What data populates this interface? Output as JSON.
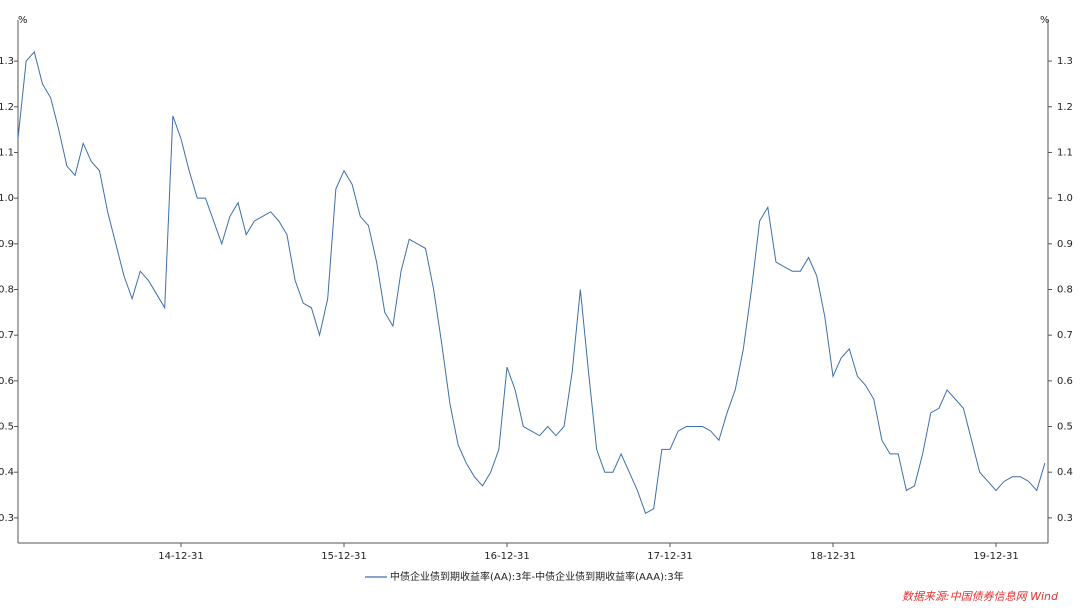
{
  "chart_data": {
    "type": "line",
    "y_unit": "%",
    "categories": [
      null,
      null,
      null,
      null,
      null,
      null,
      null,
      null,
      null,
      null,
      null,
      null,
      null,
      null,
      null,
      null,
      null,
      null,
      null,
      null,
      "14-12-31",
      null,
      null,
      null,
      null,
      null,
      null,
      null,
      null,
      null,
      null,
      null,
      null,
      null,
      null,
      null,
      null,
      null,
      null,
      null,
      "15-12-31",
      null,
      null,
      null,
      null,
      null,
      null,
      null,
      null,
      null,
      null,
      null,
      null,
      null,
      null,
      null,
      null,
      null,
      null,
      null,
      "16-12-31",
      null,
      null,
      null,
      null,
      null,
      null,
      null,
      null,
      null,
      null,
      null,
      null,
      null,
      null,
      null,
      null,
      null,
      null,
      null,
      "17-12-31",
      null,
      null,
      null,
      null,
      null,
      null,
      null,
      null,
      null,
      null,
      null,
      null,
      null,
      null,
      null,
      null,
      null,
      null,
      null,
      "18-12-31",
      null,
      null,
      null,
      null,
      null,
      null,
      null,
      null,
      null,
      null,
      null,
      null,
      null,
      null,
      null,
      null,
      null,
      null,
      null,
      "19-12-31",
      null,
      null,
      null,
      null,
      null,
      null
    ],
    "series": [
      {
        "name": "中债企业债到期收益率(AA):3年-中债企业债到期收益率(AAA):3年",
        "color": "#3f6fa8",
        "values": [
          1.13,
          1.3,
          1.32,
          1.25,
          1.22,
          1.15,
          1.07,
          1.05,
          1.12,
          1.08,
          1.06,
          0.97,
          0.9,
          0.83,
          0.78,
          0.84,
          0.82,
          0.79,
          0.76,
          1.18,
          1.13,
          1.06,
          1.0,
          1.0,
          0.95,
          0.9,
          0.96,
          0.99,
          0.92,
          0.95,
          0.96,
          0.97,
          0.95,
          0.92,
          0.82,
          0.77,
          0.76,
          0.7,
          0.78,
          1.02,
          1.06,
          1.03,
          0.96,
          0.94,
          0.86,
          0.75,
          0.72,
          0.84,
          0.91,
          0.9,
          0.89,
          0.8,
          0.68,
          0.55,
          0.46,
          0.42,
          0.39,
          0.37,
          0.4,
          0.45,
          0.63,
          0.58,
          0.5,
          0.49,
          0.48,
          0.5,
          0.48,
          0.5,
          0.62,
          0.8,
          0.62,
          0.45,
          0.4,
          0.4,
          0.44,
          0.4,
          0.36,
          0.31,
          0.32,
          0.45,
          0.45,
          0.49,
          0.5,
          0.5,
          0.5,
          0.49,
          0.47,
          0.53,
          0.58,
          0.67,
          0.8,
          0.95,
          0.98,
          0.86,
          0.85,
          0.84,
          0.84,
          0.87,
          0.83,
          0.74,
          0.61,
          0.65,
          0.67,
          0.61,
          0.59,
          0.56,
          0.47,
          0.44,
          0.44,
          0.36,
          0.37,
          0.44,
          0.53,
          0.54,
          0.58,
          0.56,
          0.54,
          0.47,
          0.4,
          0.38,
          0.36,
          0.38,
          0.39,
          0.39,
          0.38,
          0.36,
          0.42
        ]
      }
    ],
    "ylim": [
      0.245,
      1.39
    ],
    "yticks": [
      0.3,
      0.4,
      0.5,
      0.6,
      0.7,
      0.8,
      0.9,
      {
        "value": 1.0,
        "label": "1.0"
      },
      1.1,
      1.2,
      1.3
    ],
    "grid": false,
    "source": "数据来源:中国债券信息网 Wind"
  }
}
